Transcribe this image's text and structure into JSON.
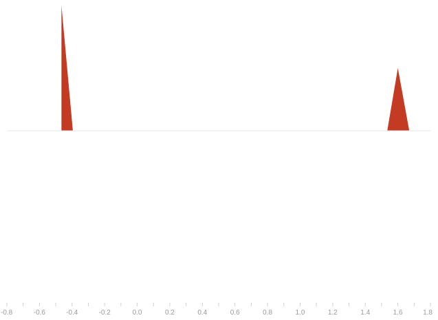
{
  "chart_data": {
    "type": "area",
    "title": "",
    "xlabel": "",
    "ylabel": "",
    "xlim": [
      -0.8,
      1.8
    ],
    "ylim": [
      0,
      1
    ],
    "grid": false,
    "legend": "none",
    "color": "#c23b22",
    "baseline_color": "#e6e6e6",
    "axis_tick_color": "#cfcfcf",
    "tick_label_color": "#9a9a9a",
    "x_ticks": [
      -0.8,
      -0.6,
      -0.4,
      -0.2,
      0.0,
      0.2,
      0.4,
      0.6,
      0.8,
      1.0,
      1.2,
      1.4,
      1.6,
      1.8
    ],
    "x_tick_labels": [
      "-0.8",
      "-0.6",
      "-0.4",
      "-0.2",
      "0.0",
      "0.2",
      "0.4",
      "0.6",
      "0.8",
      "1.0",
      "1.2",
      "1.4",
      "1.6",
      "1.8"
    ],
    "series": [
      {
        "values": [
          {
            "x": -0.465,
            "y": 0.0
          },
          {
            "x": -0.465,
            "y": 1.0
          },
          {
            "x": -0.395,
            "y": 0.0
          }
        ]
      },
      {
        "values": [
          {
            "x": 1.535,
            "y": 0.0
          },
          {
            "x": 1.6,
            "y": 0.5
          },
          {
            "x": 1.67,
            "y": 0.0
          }
        ]
      }
    ]
  }
}
